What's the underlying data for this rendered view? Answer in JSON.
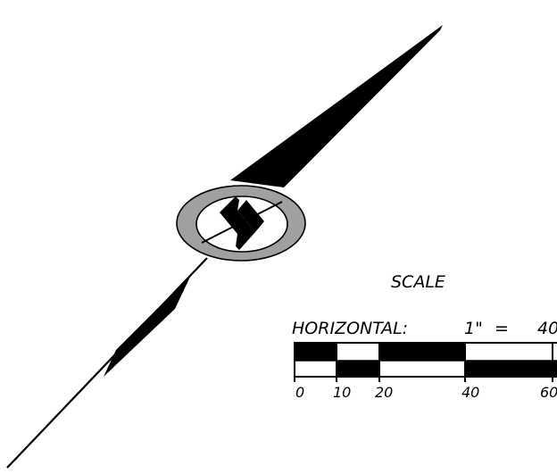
{
  "north_arrow": {
    "ring_color": "#a0a0a0",
    "ink_color": "#000000"
  },
  "scale_bar": {
    "title": "SCALE",
    "horizontal_label": "HORIZONTAL:",
    "ratio_left": "1\"",
    "ratio_equals": "=",
    "ratio_right": "40",
    "tick_labels": [
      "0",
      "10",
      "20",
      "40",
      "60"
    ]
  }
}
